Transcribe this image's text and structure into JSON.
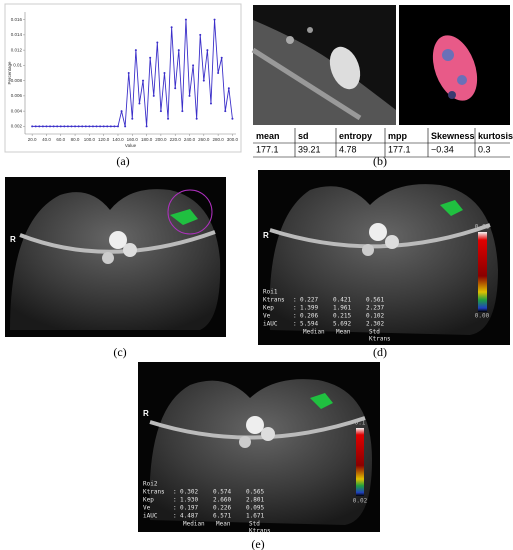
{
  "chart_data": {
    "type": "line",
    "xlabel": "Value",
    "ylabel": "Percentage",
    "x": [
      20,
      25,
      30,
      35,
      40,
      45,
      50,
      55,
      60,
      65,
      70,
      75,
      80,
      85,
      90,
      95,
      100,
      105,
      110,
      115,
      120,
      125,
      130,
      135,
      140,
      145,
      150,
      155,
      160,
      165,
      170,
      175,
      180,
      185,
      190,
      195,
      200,
      205,
      210,
      215,
      220,
      225,
      230,
      235,
      240,
      245,
      250,
      255,
      260,
      265,
      270,
      275,
      280,
      285,
      290,
      295,
      300
    ],
    "series": [
      {
        "color": "#3b2fc9",
        "values": [
          0.002,
          0.002,
          0.002,
          0.002,
          0.002,
          0.002,
          0.002,
          0.002,
          0.002,
          0.002,
          0.002,
          0.002,
          0.002,
          0.002,
          0.002,
          0.002,
          0.002,
          0.002,
          0.002,
          0.002,
          0.002,
          0.002,
          0.002,
          0.002,
          0.002,
          0.004,
          0.002,
          0.009,
          0.003,
          0.012,
          0.005,
          0.008,
          0.002,
          0.011,
          0.006,
          0.013,
          0.004,
          0.009,
          0.003,
          0.015,
          0.007,
          0.012,
          0.004,
          0.016,
          0.006,
          0.01,
          0.003,
          0.014,
          0.008,
          0.012,
          0.005,
          0.016,
          0.009,
          0.011,
          0.004,
          0.007,
          0.003
        ]
      }
    ],
    "xlim": [
      10,
      305
    ],
    "ylim": [
      0.001,
      0.017
    ],
    "xticks": [
      {
        "value": 20,
        "label": "20.0"
      },
      {
        "value": 40,
        "label": "40.0"
      },
      {
        "value": 60,
        "label": "60.0"
      },
      {
        "value": 80,
        "label": "80.0"
      },
      {
        "value": 100,
        "label": "100.0"
      },
      {
        "value": 120,
        "label": "120.0"
      },
      {
        "value": 140,
        "label": "140.0"
      },
      {
        "value": 160,
        "label": "160.0"
      },
      {
        "value": 180,
        "label": "180.0"
      },
      {
        "value": 200,
        "label": "200.0"
      },
      {
        "value": 220,
        "label": "220.0"
      },
      {
        "value": 240,
        "label": "240.0"
      },
      {
        "value": 260,
        "label": "260.0"
      },
      {
        "value": 280,
        "label": "280.0"
      },
      {
        "value": 300,
        "label": "300.0"
      }
    ],
    "yticks": [
      0.002,
      0.004,
      0.006,
      0.008,
      0.01,
      0.012,
      0.014,
      0.016
    ],
    "grid": false
  },
  "figure": {
    "labels": [
      "(a)",
      "(b)",
      "(c)",
      "(d)",
      "(e)"
    ],
    "table": {
      "header": [
        "mean",
        "sd",
        "entropy",
        "mpp",
        "Skewness",
        "kurtosis"
      ],
      "row": [
        "177.1",
        "39.21",
        "4.78",
        "177.1",
        "−0.34",
        "0.3"
      ]
    },
    "c": {
      "side": "R"
    },
    "d": {
      "side": "R",
      "roi": "Roi1",
      "rows": [
        [
          "Ktrans",
          ":",
          "0.227",
          "0.421",
          "0.561"
        ],
        [
          "Kep",
          ":",
          "1.399",
          "1.961",
          "2.237"
        ],
        [
          "Ve",
          ":",
          "0.206",
          "0.215",
          "0.102"
        ],
        [
          "iAUC",
          ":",
          "5.594",
          "5.692",
          "2.302"
        ]
      ],
      "footer": [
        "Median",
        "Mean",
        "Std"
      ],
      "footer2": "Ktrans",
      "colorbar": [
        "0.68",
        "0.00"
      ]
    },
    "e": {
      "side": "R",
      "roi": "Roi2",
      "rows": [
        [
          "Ktrans",
          ":",
          "0.302",
          "0.574",
          "0.565"
        ],
        [
          "Kep",
          ":",
          "1.930",
          "2.660",
          "2.801"
        ],
        [
          "Ve",
          ":",
          "0.197",
          "0.226",
          "0.095"
        ],
        [
          "iAUC",
          ":",
          "4.487",
          "6.571",
          "1.671"
        ]
      ],
      "footer": [
        "Median",
        "Mean",
        "Std"
      ],
      "footer2": "Ktrans",
      "colorbar": [
        "0.1",
        "0.02"
      ]
    }
  }
}
